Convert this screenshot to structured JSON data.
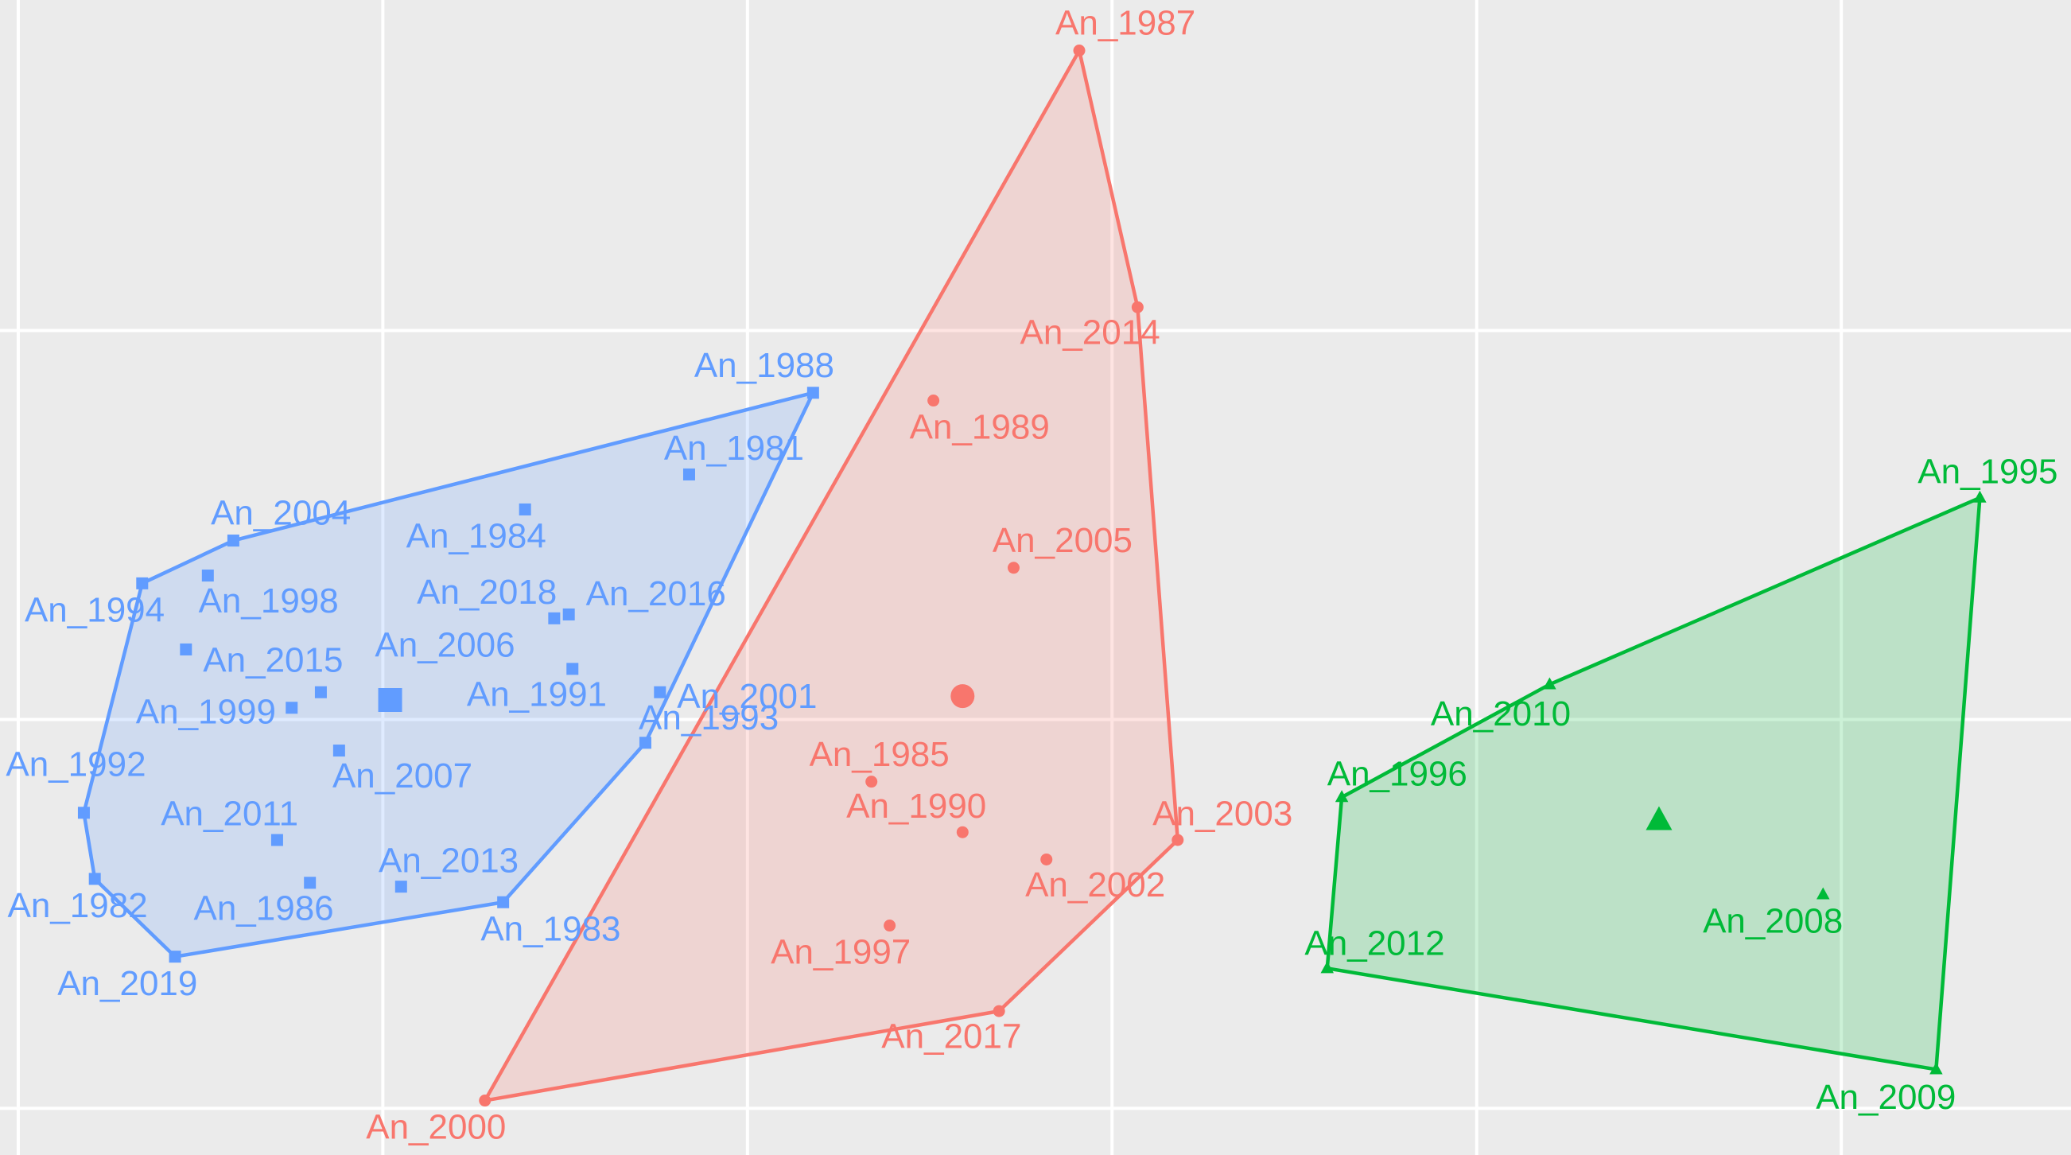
{
  "chart_data": {
    "type": "scatter",
    "xlim": [
      -2.05,
      3.63
    ],
    "ylim": [
      -1.12,
      1.85
    ],
    "xticks": [
      -2,
      -1,
      0,
      1,
      2,
      3
    ],
    "yticks": [
      -1,
      0,
      1
    ],
    "grid": true,
    "hull": true,
    "series": [
      {
        "color": "#619CFF",
        "marker": "square",
        "labels": [
          "An_1988",
          "An_1981",
          "An_2004",
          "An_1984",
          "An_1994",
          "An_1998",
          "An_2018",
          "An_2016",
          "An_2015",
          "An_2006",
          "An_1999",
          "An_1991",
          "An_2001",
          "An_2007",
          "An_1992",
          "An_1993",
          "An_2011",
          "An_2013",
          "An_1986",
          "An_1982",
          "An_1983",
          "An_2019"
        ],
        "x": [
          0.18,
          -0.16,
          -1.41,
          -0.61,
          -1.66,
          -1.48,
          -0.53,
          -0.49,
          -1.54,
          -1.17,
          -1.25,
          -0.48,
          -0.24,
          -1.12,
          -1.82,
          -0.28,
          -1.29,
          -0.95,
          -1.2,
          -1.79,
          -0.67,
          -1.57
        ],
        "y": [
          0.84,
          0.63,
          0.46,
          0.54,
          0.35,
          0.37,
          0.26,
          0.27,
          0.18,
          0.07,
          0.03,
          0.13,
          0.07,
          -0.08,
          -0.24,
          -0.06,
          -0.31,
          -0.43,
          -0.42,
          -0.41,
          -0.47,
          -0.61
        ],
        "centroid": {
          "x": -0.98,
          "y": 0.05
        }
      },
      {
        "color": "#F8766D",
        "marker": "circle",
        "labels": [
          "An_1987",
          "An_2014",
          "An_1989",
          "An_2005",
          "An_1985",
          "An_1990",
          "An_2003",
          "An_2002",
          "An_1997",
          "An_2017",
          "An_2000"
        ],
        "x": [
          0.91,
          1.07,
          0.51,
          0.73,
          0.34,
          0.59,
          1.18,
          0.82,
          0.39,
          0.69,
          -0.72
        ],
        "y": [
          1.72,
          1.06,
          0.82,
          0.39,
          -0.16,
          -0.29,
          -0.31,
          -0.36,
          -0.53,
          -0.75,
          -0.98
        ],
        "centroid": {
          "x": 0.59,
          "y": 0.06
        }
      },
      {
        "color": "#00BA38",
        "marker": "triangle",
        "labels": [
          "An_1995",
          "An_2010",
          "An_1996",
          "An_2008",
          "An_2012",
          "An_2009"
        ],
        "x": [
          3.38,
          2.2,
          1.63,
          2.95,
          1.59,
          3.26
        ],
        "y": [
          0.57,
          0.09,
          -0.2,
          -0.45,
          -0.64,
          -0.9
        ],
        "centroid": {
          "x": 2.5,
          "y": -0.26
        }
      }
    ]
  }
}
